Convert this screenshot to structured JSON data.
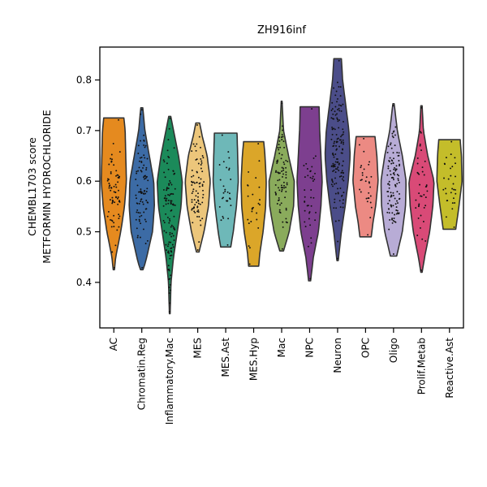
{
  "chart_data": {
    "type": "violin",
    "title": "ZH916inf",
    "xlabel": "",
    "ylabel_lines": [
      "CHEMBL1703 score",
      "METFORMIN HYDROCHLORIDE"
    ],
    "ylim": [
      0.31,
      0.865
    ],
    "yticks": [
      0.4,
      0.5,
      0.6,
      0.7,
      0.8
    ],
    "ytick_labels": [
      "0.4",
      "0.5",
      "0.6",
      "0.7",
      "0.8"
    ],
    "grid": false,
    "legend": "none",
    "jitter_points": true,
    "categories": [
      "AC",
      "Chromatin.Reg",
      "Inflammatory.Mac",
      "MES",
      "MES.Ast",
      "MES.Hyp",
      "Mac",
      "NPC",
      "Neuron",
      "OPC",
      "Oligo",
      "Prolif.Metab",
      "Reactive.Ast"
    ],
    "series": [
      {
        "category": "AC",
        "color": "#e58a1f",
        "min": 0.425,
        "max": 0.725,
        "median": 0.6,
        "n": 70,
        "profile": [
          [
            0.425,
            0.05
          ],
          [
            0.45,
            0.15
          ],
          [
            0.5,
            0.55
          ],
          [
            0.55,
            0.85
          ],
          [
            0.6,
            1.0
          ],
          [
            0.65,
            0.95
          ],
          [
            0.7,
            0.9
          ],
          [
            0.725,
            0.8
          ]
        ]
      },
      {
        "category": "Chromatin.Reg",
        "color": "#3c6ba5",
        "min": 0.425,
        "max": 0.745,
        "median": 0.58,
        "n": 90,
        "profile": [
          [
            0.425,
            0.1
          ],
          [
            0.44,
            0.3
          ],
          [
            0.5,
            0.85
          ],
          [
            0.55,
            1.0
          ],
          [
            0.6,
            0.95
          ],
          [
            0.65,
            0.6
          ],
          [
            0.7,
            0.25
          ],
          [
            0.745,
            0.08
          ]
        ]
      },
      {
        "category": "Inflammatory.Mac",
        "color": "#1b8a5a",
        "min": 0.338,
        "max": 0.728,
        "median": 0.58,
        "n": 110,
        "profile": [
          [
            0.338,
            0.03
          ],
          [
            0.4,
            0.1
          ],
          [
            0.45,
            0.3
          ],
          [
            0.5,
            0.6
          ],
          [
            0.55,
            0.9
          ],
          [
            0.6,
            1.0
          ],
          [
            0.65,
            0.7
          ],
          [
            0.7,
            0.3
          ],
          [
            0.728,
            0.08
          ]
        ]
      },
      {
        "category": "MES",
        "color": "#ecc67b",
        "min": 0.46,
        "max": 0.715,
        "median": 0.6,
        "n": 80,
        "profile": [
          [
            0.46,
            0.1
          ],
          [
            0.5,
            0.5
          ],
          [
            0.55,
            0.85
          ],
          [
            0.6,
            1.0
          ],
          [
            0.65,
            0.75
          ],
          [
            0.69,
            0.35
          ],
          [
            0.715,
            0.15
          ]
        ]
      },
      {
        "category": "MES.Ast",
        "color": "#6eb8b8",
        "min": 0.47,
        "max": 0.695,
        "median": 0.6,
        "n": 30,
        "profile": [
          [
            0.47,
            0.4
          ],
          [
            0.5,
            0.6
          ],
          [
            0.55,
            0.85
          ],
          [
            0.6,
            1.0
          ],
          [
            0.65,
            0.95
          ],
          [
            0.695,
            0.9
          ]
        ]
      },
      {
        "category": "MES.Hyp",
        "color": "#dba629",
        "min": 0.432,
        "max": 0.678,
        "median": 0.58,
        "n": 25,
        "profile": [
          [
            0.432,
            0.4
          ],
          [
            0.46,
            0.5
          ],
          [
            0.5,
            0.75
          ],
          [
            0.55,
            0.95
          ],
          [
            0.6,
            1.0
          ],
          [
            0.65,
            0.9
          ],
          [
            0.678,
            0.8
          ]
        ]
      },
      {
        "category": "Mac",
        "color": "#8aab5c",
        "min": 0.462,
        "max": 0.758,
        "median": 0.58,
        "n": 80,
        "profile": [
          [
            0.462,
            0.15
          ],
          [
            0.5,
            0.6
          ],
          [
            0.55,
            0.95
          ],
          [
            0.6,
            1.0
          ],
          [
            0.65,
            0.55
          ],
          [
            0.7,
            0.15
          ],
          [
            0.758,
            0.03
          ]
        ]
      },
      {
        "category": "NPC",
        "color": "#7d3f8f",
        "min": 0.403,
        "max": 0.747,
        "median": 0.6,
        "n": 40,
        "profile": [
          [
            0.403,
            0.08
          ],
          [
            0.45,
            0.3
          ],
          [
            0.5,
            0.7
          ],
          [
            0.55,
            0.9
          ],
          [
            0.6,
            1.0
          ],
          [
            0.65,
            0.9
          ],
          [
            0.7,
            0.8
          ],
          [
            0.747,
            0.75
          ]
        ]
      },
      {
        "category": "Neuron",
        "color": "#4b4d89",
        "min": 0.443,
        "max": 0.842,
        "median": 0.66,
        "n": 140,
        "profile": [
          [
            0.443,
            0.05
          ],
          [
            0.5,
            0.3
          ],
          [
            0.55,
            0.6
          ],
          [
            0.6,
            0.85
          ],
          [
            0.65,
            1.0
          ],
          [
            0.7,
            0.9
          ],
          [
            0.75,
            0.65
          ],
          [
            0.8,
            0.4
          ],
          [
            0.842,
            0.3
          ]
        ]
      },
      {
        "category": "OPC",
        "color": "#ec8a83",
        "min": 0.49,
        "max": 0.688,
        "median": 0.59,
        "n": 30,
        "profile": [
          [
            0.49,
            0.45
          ],
          [
            0.52,
            0.6
          ],
          [
            0.55,
            0.8
          ],
          [
            0.6,
            1.0
          ],
          [
            0.65,
            0.9
          ],
          [
            0.688,
            0.75
          ]
        ]
      },
      {
        "category": "Oligo",
        "color": "#b8acd6",
        "min": 0.452,
        "max": 0.753,
        "median": 0.59,
        "n": 110,
        "profile": [
          [
            0.452,
            0.25
          ],
          [
            0.5,
            0.7
          ],
          [
            0.55,
            0.95
          ],
          [
            0.6,
            1.0
          ],
          [
            0.65,
            0.7
          ],
          [
            0.7,
            0.3
          ],
          [
            0.753,
            0.05
          ]
        ]
      },
      {
        "category": "Prolif.Metab",
        "color": "#d94a77",
        "min": 0.42,
        "max": 0.749,
        "median": 0.58,
        "n": 40,
        "profile": [
          [
            0.42,
            0.05
          ],
          [
            0.45,
            0.25
          ],
          [
            0.5,
            0.65
          ],
          [
            0.55,
            0.9
          ],
          [
            0.6,
            1.0
          ],
          [
            0.65,
            0.5
          ],
          [
            0.7,
            0.15
          ],
          [
            0.749,
            0.05
          ]
        ]
      },
      {
        "category": "Reactive.Ast",
        "color": "#c4bd2a",
        "min": 0.505,
        "max": 0.682,
        "median": 0.6,
        "n": 30,
        "profile": [
          [
            0.505,
            0.5
          ],
          [
            0.55,
            0.75
          ],
          [
            0.6,
            1.0
          ],
          [
            0.65,
            0.95
          ],
          [
            0.682,
            0.85
          ]
        ]
      }
    ]
  }
}
